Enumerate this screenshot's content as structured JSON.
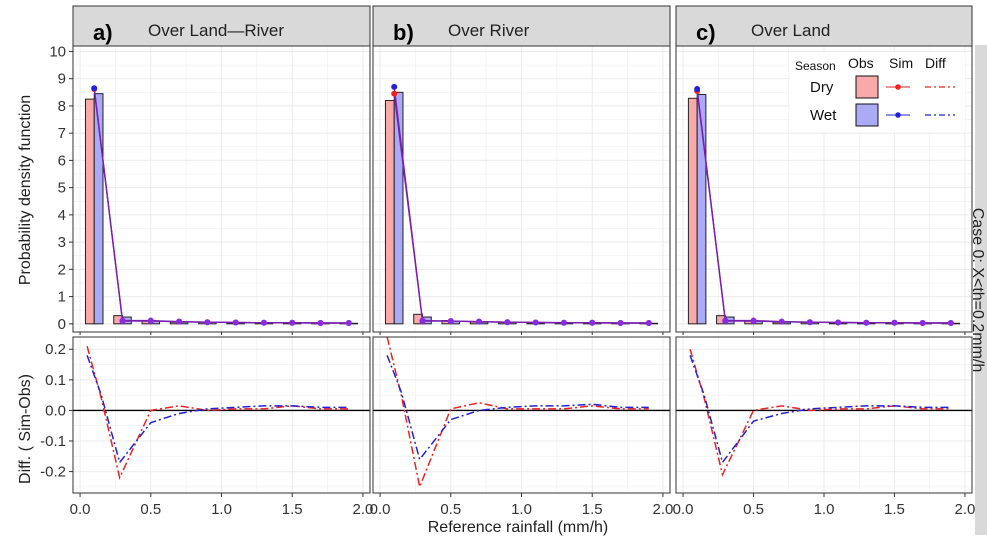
{
  "figure": {
    "y_axis_top_label": "Probability density function",
    "y_axis_bottom_label": "Diff. ( Sim-Obs)",
    "x_axis_label": "Reference rainfall (mm/h)",
    "strip_right_label": "Case 0: X<th=0.2mm/h",
    "legend": {
      "season_title": "Season",
      "obs_title": "Obs",
      "sim_title": "Sim",
      "diff_title": "Diff",
      "dry_label": "Dry",
      "wet_label": "Wet"
    },
    "colors": {
      "dry_fill": "#f8aaaa",
      "wet_fill": "#aaaaf5",
      "dry_line": "#ee2222",
      "wet_line": "#2222dd",
      "sim_line": "#7a1fb0",
      "sim_point": "#8a2be2",
      "strip_bg": "#d9d9d9"
    }
  },
  "chart_data": [
    {
      "panel": "a)",
      "title": "Over Land—River",
      "type": "bar",
      "xlim": [
        -0.05,
        2.05
      ],
      "ylim": [
        -0.3,
        10.2
      ],
      "diff_ylim": [
        -0.27,
        0.24
      ],
      "xticks": [
        0.0,
        0.5,
        1.0,
        1.5,
        2.0
      ],
      "yticks_top": [
        0,
        1,
        2,
        3,
        4,
        5,
        6,
        7,
        8,
        9,
        10
      ],
      "yticks_bottom": [
        -0.2,
        -0.1,
        0.0,
        0.1,
        0.2
      ],
      "x": [
        0.1,
        0.3,
        0.5,
        0.7,
        0.9,
        1.1,
        1.3,
        1.5,
        1.7,
        1.9
      ],
      "series": [
        {
          "name": "Dry",
          "kind": "obs_bar",
          "values": [
            8.25,
            0.3,
            0.1,
            0.06,
            0.05,
            0.04,
            0.03,
            0.03,
            0.02,
            0.02
          ]
        },
        {
          "name": "Wet",
          "kind": "obs_bar",
          "values": [
            8.45,
            0.25,
            0.1,
            0.06,
            0.05,
            0.04,
            0.03,
            0.03,
            0.02,
            0.02
          ]
        },
        {
          "name": "Dry",
          "kind": "sim",
          "values": [
            8.62,
            0.12,
            0.12,
            0.08,
            0.06,
            0.05,
            0.04,
            0.04,
            0.03,
            0.03
          ]
        },
        {
          "name": "Wet",
          "kind": "sim",
          "values": [
            8.65,
            0.1,
            0.1,
            0.08,
            0.06,
            0.05,
            0.04,
            0.04,
            0.03,
            0.03
          ]
        }
      ],
      "diff": [
        {
          "name": "Dry",
          "x": [
            0.05,
            0.15,
            0.28,
            0.5,
            0.7,
            0.9,
            1.1,
            1.3,
            1.5,
            1.7,
            1.9
          ],
          "values": [
            0.21,
            0.04,
            -0.22,
            0.0,
            0.015,
            0.0,
            0.005,
            0.005,
            0.015,
            0.005,
            0.005
          ]
        },
        {
          "name": "Wet",
          "x": [
            0.05,
            0.15,
            0.28,
            0.5,
            0.7,
            0.9,
            1.1,
            1.3,
            1.5,
            1.7,
            1.9
          ],
          "values": [
            0.18,
            0.05,
            -0.17,
            -0.04,
            -0.01,
            0.005,
            0.01,
            0.015,
            0.015,
            0.01,
            0.01
          ]
        }
      ]
    },
    {
      "panel": "b)",
      "title": "Over River",
      "type": "bar",
      "xlim": [
        -0.05,
        2.05
      ],
      "ylim": [
        -0.3,
        10.2
      ],
      "diff_ylim": [
        -0.27,
        0.24
      ],
      "xticks": [
        0.0,
        0.5,
        1.0,
        1.5,
        2.0
      ],
      "yticks_top": [
        0,
        1,
        2,
        3,
        4,
        5,
        6,
        7,
        8,
        9,
        10
      ],
      "yticks_bottom": [
        -0.2,
        -0.1,
        0.0,
        0.1,
        0.2
      ],
      "x": [
        0.1,
        0.3,
        0.5,
        0.7,
        0.9,
        1.1,
        1.3,
        1.5,
        1.7,
        1.9
      ],
      "series": [
        {
          "name": "Dry",
          "kind": "obs_bar",
          "values": [
            8.2,
            0.35,
            0.12,
            0.07,
            0.05,
            0.04,
            0.03,
            0.03,
            0.02,
            0.02
          ]
        },
        {
          "name": "Wet",
          "kind": "obs_bar",
          "values": [
            8.5,
            0.25,
            0.1,
            0.06,
            0.05,
            0.04,
            0.03,
            0.03,
            0.02,
            0.02
          ]
        },
        {
          "name": "Dry",
          "kind": "sim",
          "values": [
            8.45,
            0.12,
            0.1,
            0.08,
            0.06,
            0.05,
            0.04,
            0.04,
            0.03,
            0.03
          ]
        },
        {
          "name": "Wet",
          "kind": "sim",
          "values": [
            8.7,
            0.1,
            0.1,
            0.08,
            0.06,
            0.05,
            0.04,
            0.04,
            0.03,
            0.03
          ]
        }
      ],
      "diff": [
        {
          "name": "Dry",
          "x": [
            0.05,
            0.15,
            0.28,
            0.5,
            0.7,
            0.9,
            1.1,
            1.3,
            1.5,
            1.7,
            1.9
          ],
          "values": [
            0.24,
            0.05,
            -0.25,
            0.005,
            0.025,
            0.005,
            0.005,
            0.005,
            0.015,
            0.005,
            0.005
          ]
        },
        {
          "name": "Wet",
          "x": [
            0.05,
            0.15,
            0.28,
            0.5,
            0.7,
            0.9,
            1.1,
            1.3,
            1.5,
            1.7,
            1.9
          ],
          "values": [
            0.18,
            0.06,
            -0.16,
            -0.03,
            0.0,
            0.01,
            0.015,
            0.015,
            0.02,
            0.01,
            0.01
          ]
        }
      ]
    },
    {
      "panel": "c)",
      "title": "Over Land",
      "type": "bar",
      "xlim": [
        -0.05,
        2.05
      ],
      "ylim": [
        -0.3,
        10.2
      ],
      "diff_ylim": [
        -0.27,
        0.24
      ],
      "xticks": [
        0.0,
        0.5,
        1.0,
        1.5,
        2.0
      ],
      "yticks_top": [
        0,
        1,
        2,
        3,
        4,
        5,
        6,
        7,
        8,
        9,
        10
      ],
      "yticks_bottom": [
        -0.2,
        -0.1,
        0.0,
        0.1,
        0.2
      ],
      "x": [
        0.1,
        0.3,
        0.5,
        0.7,
        0.9,
        1.1,
        1.3,
        1.5,
        1.7,
        1.9
      ],
      "series": [
        {
          "name": "Dry",
          "kind": "obs_bar",
          "values": [
            8.28,
            0.3,
            0.1,
            0.06,
            0.05,
            0.04,
            0.03,
            0.03,
            0.02,
            0.02
          ]
        },
        {
          "name": "Wet",
          "kind": "obs_bar",
          "values": [
            8.42,
            0.25,
            0.1,
            0.06,
            0.05,
            0.04,
            0.03,
            0.03,
            0.02,
            0.02
          ]
        },
        {
          "name": "Dry",
          "kind": "sim",
          "values": [
            8.55,
            0.12,
            0.12,
            0.08,
            0.06,
            0.05,
            0.04,
            0.04,
            0.03,
            0.03
          ]
        },
        {
          "name": "Wet",
          "kind": "sim",
          "values": [
            8.62,
            0.1,
            0.1,
            0.08,
            0.06,
            0.05,
            0.04,
            0.04,
            0.03,
            0.03
          ]
        }
      ],
      "diff": [
        {
          "name": "Dry",
          "x": [
            0.05,
            0.15,
            0.28,
            0.5,
            0.7,
            0.9,
            1.1,
            1.3,
            1.5,
            1.7,
            1.9
          ],
          "values": [
            0.2,
            0.04,
            -0.21,
            0.0,
            0.015,
            0.0,
            0.005,
            0.005,
            0.015,
            0.005,
            0.005
          ]
        },
        {
          "name": "Wet",
          "x": [
            0.05,
            0.15,
            0.28,
            0.5,
            0.7,
            0.9,
            1.1,
            1.3,
            1.5,
            1.7,
            1.9
          ],
          "values": [
            0.18,
            0.05,
            -0.17,
            -0.035,
            -0.01,
            0.005,
            0.01,
            0.015,
            0.015,
            0.01,
            0.01
          ]
        }
      ]
    }
  ]
}
